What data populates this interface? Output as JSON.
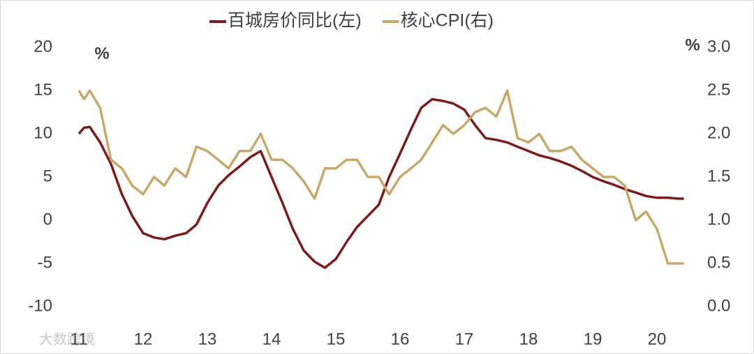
{
  "chart_data": {
    "type": "line",
    "legend_position": "top",
    "y_unit": "%",
    "y2_unit": "%",
    "watermark": "大数跨境",
    "x": [
      11,
      11.08,
      11.17,
      11.33,
      11.5,
      11.67,
      11.83,
      12,
      12.17,
      12.33,
      12.5,
      12.67,
      12.83,
      13,
      13.17,
      13.33,
      13.5,
      13.67,
      13.83,
      14,
      14.17,
      14.33,
      14.5,
      14.67,
      14.83,
      15,
      15.17,
      15.33,
      15.5,
      15.67,
      15.83,
      16,
      16.17,
      16.33,
      16.5,
      16.67,
      16.83,
      17,
      17.17,
      17.33,
      17.5,
      17.67,
      17.83,
      18,
      18.17,
      18.33,
      18.5,
      18.67,
      18.83,
      19,
      19.17,
      19.33,
      19.5,
      19.67,
      19.83,
      20,
      20.17,
      20.33,
      20.42
    ],
    "xlim": [
      11,
      20.8
    ],
    "xticks": [
      11,
      12,
      13,
      14,
      15,
      16,
      17,
      18,
      19,
      20
    ],
    "ylim": [
      -10,
      20
    ],
    "yticks": [
      -10,
      -5,
      0,
      5,
      10,
      15,
      20
    ],
    "y2lim": [
      0,
      3
    ],
    "y2ticks": [
      {
        "value": 0,
        "label": "0.0"
      },
      {
        "value": 0.5,
        "label": "0.5"
      },
      {
        "value": 1,
        "label": "1.0"
      },
      {
        "value": 1.5,
        "label": "1.5"
      },
      {
        "value": 2,
        "label": "2.0"
      },
      {
        "value": 2.5,
        "label": "2.5"
      },
      {
        "value": 3,
        "label": "3.0"
      }
    ],
    "series": [
      {
        "name": "百城房价同比(左)",
        "color": "#7b1c1c",
        "axis": "y",
        "values": [
          10,
          10.7,
          10.8,
          9,
          6.5,
          3,
          0.5,
          -1.5,
          -2,
          -2.2,
          -1.8,
          -1.5,
          -0.5,
          2,
          4,
          5.2,
          6.2,
          7.3,
          8,
          5,
          2,
          -1,
          -3.5,
          -4.8,
          -5.5,
          -4.5,
          -2.5,
          -0.8,
          0.5,
          1.8,
          5,
          7.7,
          10.5,
          13,
          14,
          13.8,
          13.5,
          12.8,
          11,
          9.5,
          9.3,
          9,
          8.5,
          8,
          7.5,
          7.2,
          6.8,
          6.3,
          5.7,
          5,
          4.5,
          4.1,
          3.6,
          3.2,
          2.8,
          2.6,
          2.6,
          2.5,
          2.5
        ]
      },
      {
        "name": "核心CPI(右)",
        "color": "#c8a86a",
        "axis": "y2",
        "values": [
          2.5,
          2.4,
          2.5,
          2.3,
          1.7,
          1.6,
          1.4,
          1.3,
          1.5,
          1.4,
          1.6,
          1.5,
          1.85,
          1.8,
          1.7,
          1.6,
          1.8,
          1.8,
          2,
          1.7,
          1.7,
          1.6,
          1.45,
          1.25,
          1.6,
          1.6,
          1.7,
          1.7,
          1.5,
          1.5,
          1.3,
          1.5,
          1.6,
          1.7,
          1.9,
          2.1,
          2,
          2.1,
          2.25,
          2.3,
          2.2,
          2.5,
          1.95,
          1.9,
          2,
          1.8,
          1.8,
          1.85,
          1.7,
          1.6,
          1.5,
          1.5,
          1.4,
          1,
          1.1,
          0.9,
          0.5,
          0.5,
          0.5
        ]
      }
    ]
  }
}
